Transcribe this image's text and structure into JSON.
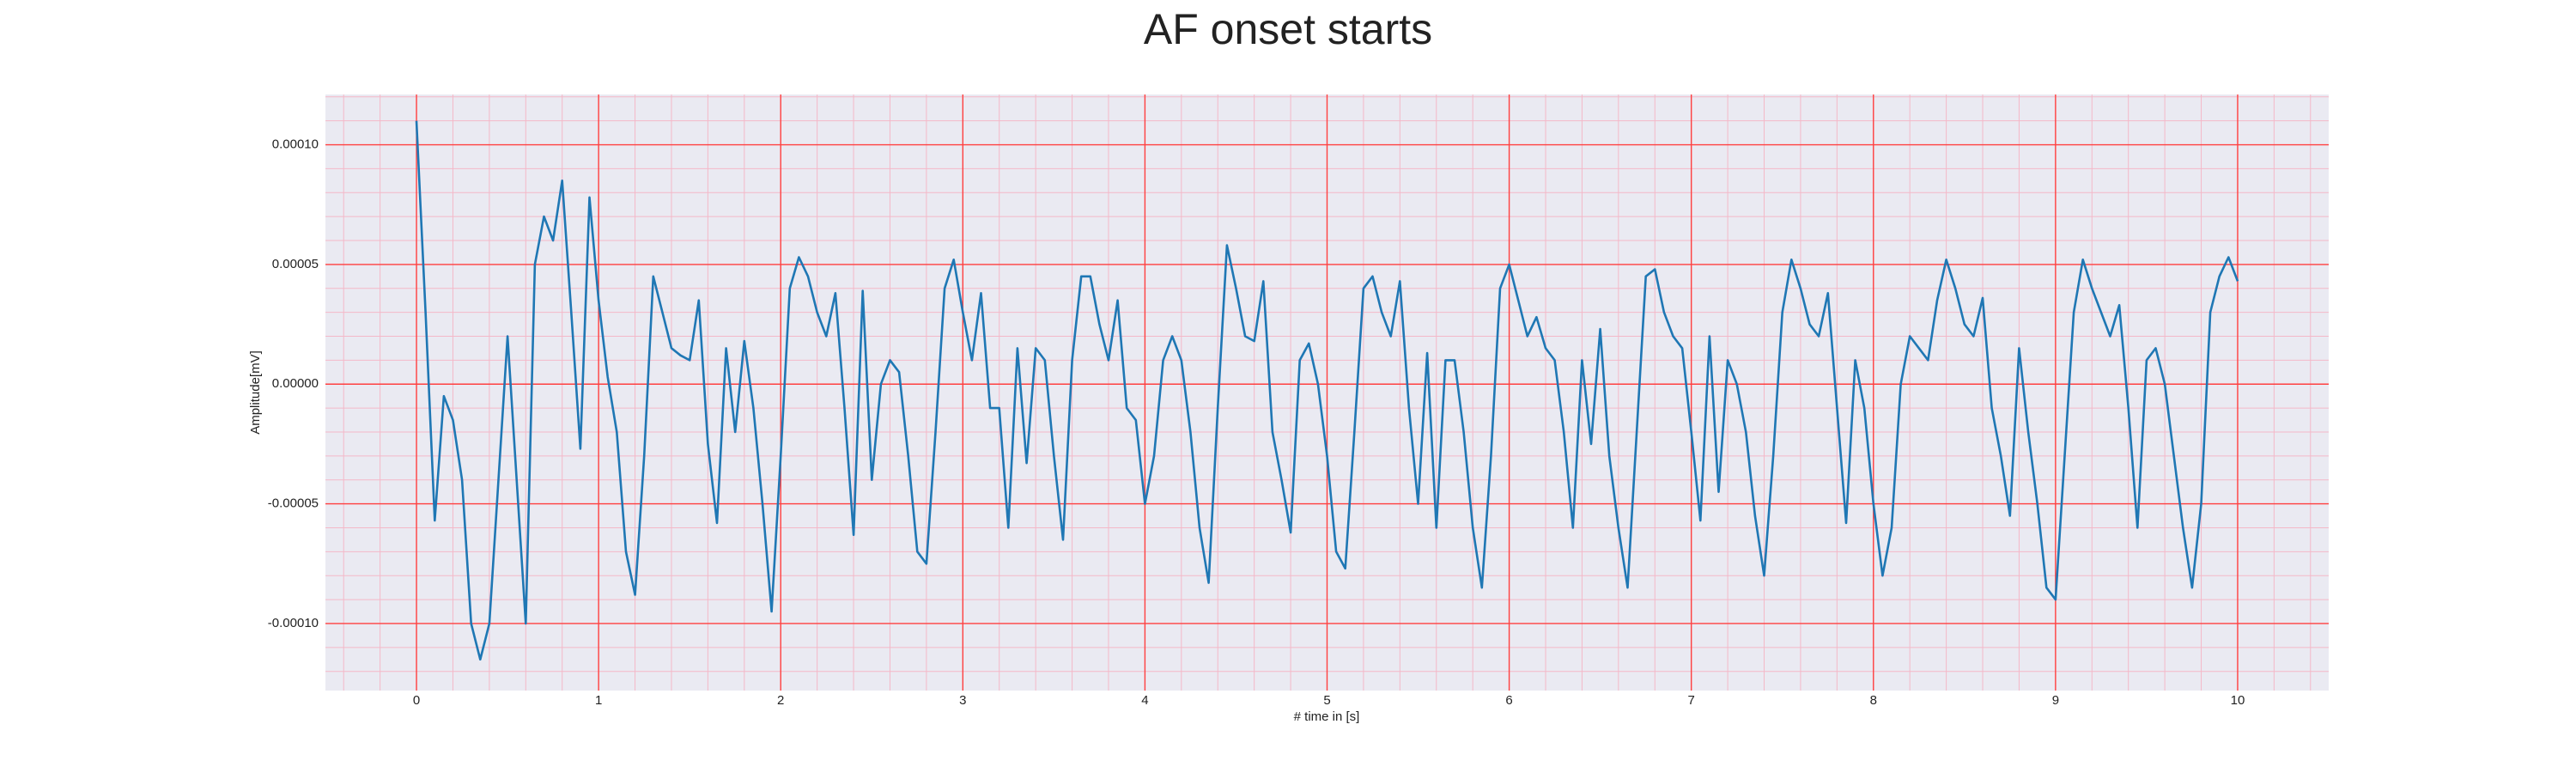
{
  "chart_data": {
    "type": "line",
    "title": "AF onset starts",
    "xlabel": "# time in [s]",
    "ylabel": "Amplitude[mV]",
    "color": "#1f77b4",
    "background": "#eaeaf2",
    "grid_color": "#ff4040",
    "minor_grid_color": "#f4b8c8",
    "grid": true,
    "minor_grid": true,
    "xlim": [
      -0.5,
      10.5
    ],
    "ylim": [
      -0.000128,
      0.000121
    ],
    "xticks": [
      0,
      1,
      2,
      3,
      4,
      5,
      6,
      7,
      8,
      9,
      10
    ],
    "yticks": [
      {
        "value": -0.0001,
        "label": "-0.00010"
      },
      {
        "value": -5e-05,
        "label": "-0.00005"
      },
      {
        "value": 0,
        "label": "0.00000"
      },
      {
        "value": 5e-05,
        "label": "0.00005"
      },
      {
        "value": 0.0001,
        "label": "0.00010"
      }
    ],
    "x": [
      0,
      0.05,
      0.1,
      0.15,
      0.2,
      0.25,
      0.3,
      0.35,
      0.4,
      0.45,
      0.5,
      0.55,
      0.6,
      0.65,
      0.7,
      0.75,
      0.8,
      0.85,
      0.9,
      0.95,
      1,
      1.05,
      1.1,
      1.15,
      1.2,
      1.25,
      1.3,
      1.35,
      1.4,
      1.45,
      1.5,
      1.55,
      1.6,
      1.65,
      1.7,
      1.75,
      1.8,
      1.85,
      1.9,
      1.95,
      2,
      2.05,
      2.1,
      2.15,
      2.2,
      2.25,
      2.3,
      2.35,
      2.4,
      2.45,
      2.5,
      2.55,
      2.6,
      2.65,
      2.7,
      2.75,
      2.8,
      2.85,
      2.9,
      2.95,
      3,
      3.05,
      3.1,
      3.15,
      3.2,
      3.25,
      3.3,
      3.35,
      3.4,
      3.45,
      3.5,
      3.55,
      3.6,
      3.65,
      3.7,
      3.75,
      3.8,
      3.85,
      3.9,
      3.95,
      4,
      4.05,
      4.1,
      4.15,
      4.2,
      4.25,
      4.3,
      4.35,
      4.4,
      4.45,
      4.5,
      4.55,
      4.6,
      4.65,
      4.7,
      4.75,
      4.8,
      4.85,
      4.9,
      4.95,
      5,
      5.05,
      5.1,
      5.15,
      5.2,
      5.25,
      5.3,
      5.35,
      5.4,
      5.45,
      5.5,
      5.55,
      5.6,
      5.65,
      5.7,
      5.75,
      5.8,
      5.85,
      5.9,
      5.95,
      6,
      6.05,
      6.1,
      6.15,
      6.2,
      6.25,
      6.3,
      6.35,
      6.4,
      6.45,
      6.5,
      6.55,
      6.6,
      6.65,
      6.7,
      6.75,
      6.8,
      6.85,
      6.9,
      6.95,
      7,
      7.05,
      7.1,
      7.15,
      7.2,
      7.25,
      7.3,
      7.35,
      7.4,
      7.45,
      7.5,
      7.55,
      7.6,
      7.65,
      7.7,
      7.75,
      7.8,
      7.85,
      7.9,
      7.95,
      8,
      8.05,
      8.1,
      8.15,
      8.2,
      8.25,
      8.3,
      8.35,
      8.4,
      8.45,
      8.5,
      8.55,
      8.6,
      8.65,
      8.7,
      8.75,
      8.8,
      8.85,
      8.9,
      8.95,
      9,
      9.05,
      9.1,
      9.15,
      9.2,
      9.25,
      9.3,
      9.35,
      9.4,
      9.45,
      9.5,
      9.55,
      9.6,
      9.65,
      9.7,
      9.75,
      9.8,
      9.85,
      9.9,
      9.95,
      10
    ],
    "values": [
      0.00011,
      3e-05,
      -5.7e-05,
      -5e-06,
      -1.5e-05,
      -4e-05,
      -0.0001,
      -0.000115,
      -0.0001,
      -4e-05,
      2e-05,
      -4e-05,
      -0.0001,
      5e-05,
      7e-05,
      6e-05,
      8.5e-05,
      3e-05,
      -2.7e-05,
      7.8e-05,
      3.5e-05,
      3e-06,
      -2e-05,
      -7e-05,
      -8.8e-05,
      -3e-05,
      4.5e-05,
      3e-05,
      1.5e-05,
      1.2e-05,
      1e-05,
      3.5e-05,
      -2.5e-05,
      -5.8e-05,
      1.5e-05,
      -2e-05,
      1.8e-05,
      -1e-05,
      -5e-05,
      -9.5e-05,
      -3e-05,
      4e-05,
      5.3e-05,
      4.5e-05,
      3e-05,
      2e-05,
      3.8e-05,
      -1e-05,
      -6.3e-05,
      3.9e-05,
      -4e-05,
      0,
      1e-05,
      5e-06,
      -3e-05,
      -7e-05,
      -7.5e-05,
      -2e-05,
      4e-05,
      5.2e-05,
      3e-05,
      1e-05,
      3.8e-05,
      -1e-05,
      -1e-05,
      -6e-05,
      1.5e-05,
      -3.3e-05,
      1.5e-05,
      1e-05,
      -3e-05,
      -6.5e-05,
      1e-05,
      4.5e-05,
      4.5e-05,
      2.5e-05,
      1e-05,
      3.5e-05,
      -1e-05,
      -1.5e-05,
      -5e-05,
      -3e-05,
      1e-05,
      2e-05,
      1e-05,
      -2e-05,
      -6e-05,
      -8.3e-05,
      -1e-05,
      5.8e-05,
      4e-05,
      2e-05,
      1.8e-05,
      4.3e-05,
      -2e-05,
      -4e-05,
      -6.2e-05,
      1e-05,
      1.7e-05,
      0,
      -3e-05,
      -7e-05,
      -7.7e-05,
      -2e-05,
      4e-05,
      4.5e-05,
      3e-05,
      2e-05,
      4.3e-05,
      -1e-05,
      -5e-05,
      1.3e-05,
      -6e-05,
      1e-05,
      1e-05,
      -2e-05,
      -6e-05,
      -8.5e-05,
      -3e-05,
      4e-05,
      5e-05,
      3.5e-05,
      2e-05,
      2.8e-05,
      1.5e-05,
      1e-05,
      -2e-05,
      -6e-05,
      1e-05,
      -2.5e-05,
      2.3e-05,
      -3e-05,
      -6e-05,
      -8.5e-05,
      -2e-05,
      4.5e-05,
      4.8e-05,
      3e-05,
      2e-05,
      1.5e-05,
      -2e-05,
      -5.7e-05,
      2e-05,
      -4.5e-05,
      1e-05,
      0,
      -2e-05,
      -5.5e-05,
      -8e-05,
      -3e-05,
      3e-05,
      5.2e-05,
      4e-05,
      2.5e-05,
      2e-05,
      3.8e-05,
      -1e-05,
      -5.8e-05,
      1e-05,
      -1e-05,
      -5e-05,
      -8e-05,
      -6e-05,
      0,
      2e-05,
      1.5e-05,
      1e-05,
      3.5e-05,
      5.2e-05,
      4e-05,
      2.5e-05,
      2e-05,
      3.6e-05,
      -1e-05,
      -3e-05,
      -5.5e-05,
      1.5e-05,
      -2e-05,
      -5e-05,
      -8.5e-05,
      -9e-05,
      -3e-05,
      3e-05,
      5.2e-05,
      4e-05,
      3e-05,
      2e-05,
      3.3e-05,
      -1e-05,
      -6e-05,
      1e-05,
      1.5e-05,
      0,
      -3e-05,
      -6e-05,
      -8.5e-05,
      -5e-05,
      3e-05,
      4.5e-05,
      5.3e-05,
      4.3e-05
    ]
  }
}
